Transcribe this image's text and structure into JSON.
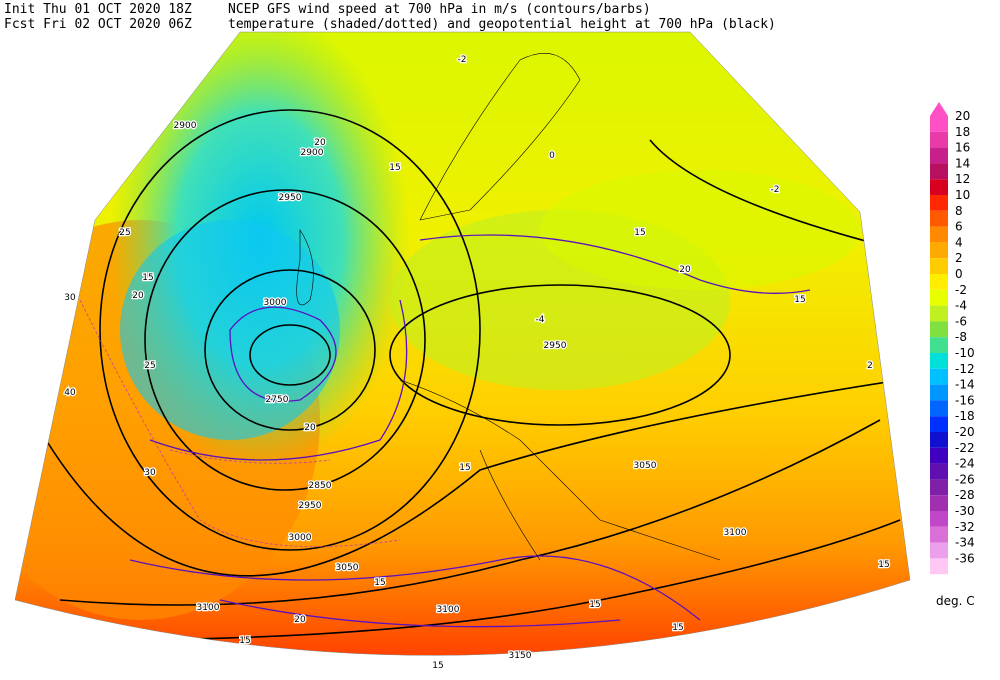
{
  "header": {
    "init": "Init  Thu 01 OCT 2020 18Z",
    "fcst": "Fcst Fri 02 OCT 2020 06Z",
    "line1": "NCEP GFS wind speed at 700 hPa in m/s (contours/barbs)",
    "line2": "temperature (shaded/dotted) and geopotential height at 700 hPa (black)"
  },
  "legend": {
    "levels": [
      20,
      18,
      16,
      14,
      12,
      10,
      8,
      6,
      4,
      2,
      0,
      -2,
      -4,
      -6,
      -8,
      -10,
      -12,
      -14,
      -16,
      -18,
      -20,
      -22,
      -24,
      -26,
      -28,
      -30,
      -32,
      -34,
      -36
    ],
    "colors": [
      "#ff4fc4",
      "#e83aa8",
      "#c8208a",
      "#b81060",
      "#d80020",
      "#ff2800",
      "#ff5a00",
      "#ff8a00",
      "#ffaa00",
      "#ffcc00",
      "#ffee00",
      "#e8ff00",
      "#c0f020",
      "#80e040",
      "#40e090",
      "#00e0d8",
      "#00c0ff",
      "#0096ff",
      "#0066ff",
      "#0030ff",
      "#1010d0",
      "#4000c0",
      "#6010b0",
      "#8020a8",
      "#a030b0",
      "#c048c8",
      "#d870d8",
      "#eca0ec",
      "#ffc8f4"
    ],
    "unit": "deg. C"
  },
  "contour_labels": [
    "2900",
    "2900",
    "2950",
    "3000",
    "2750",
    "2850",
    "2950",
    "3000",
    "3050",
    "3100",
    "3100",
    "3100",
    "3050",
    "3150",
    "2950",
    "15",
    "20",
    "25",
    "30",
    "40",
    "15",
    "20",
    "25",
    "30",
    "15",
    "20",
    "15",
    "20",
    "15",
    "15",
    "15",
    "15",
    "20",
    "15",
    "15",
    "15",
    "-2",
    "0",
    "-4",
    "2",
    "-2"
  ]
}
